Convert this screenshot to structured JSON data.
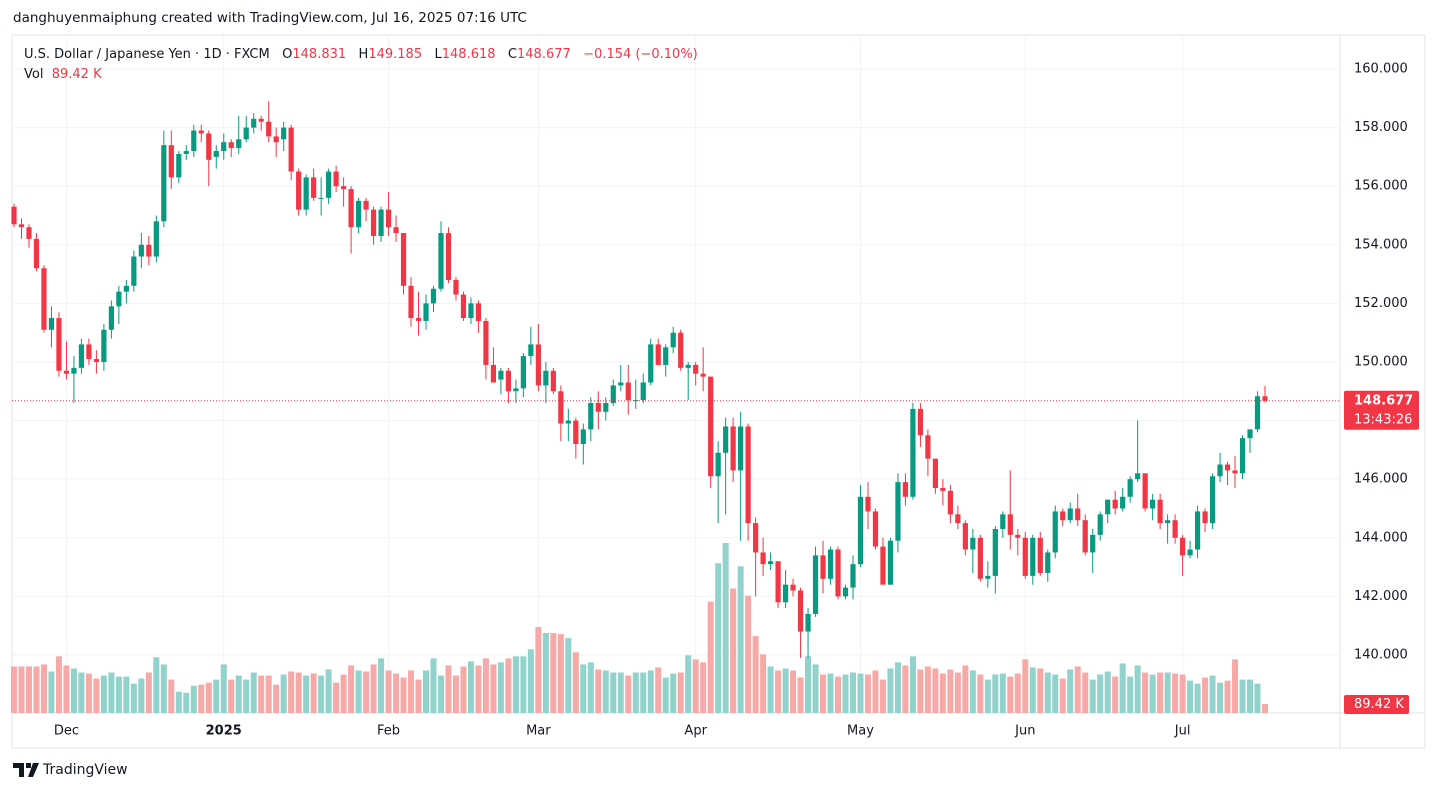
{
  "header": {
    "text": "danghuyenmaiphung created with TradingView.com, Jul 16, 2025 07:16 UTC"
  },
  "footer": {
    "logo_text": "TradingView"
  },
  "chart_data": {
    "type": "candlestick",
    "legend": {
      "symbol": "U.S. Dollar / Japanese Yen · 1D · FXCM",
      "open_label": "O",
      "high_label": "H",
      "low_label": "L",
      "close_label": "C",
      "change": "−0.154 (−0.10%)",
      "volume_label": "Vol"
    },
    "volume_last_label": "89.42 K",
    "countdown": "13:43:26",
    "up_color": "#089981",
    "down_color": "#f23645",
    "volume_up_color": "#92d2cc",
    "volume_down_color": "#f7a9a7",
    "grid": true,
    "ylim": [
      138.02,
      161.16
    ],
    "yticks": [
      {
        "value": 140,
        "label": "140.000"
      },
      {
        "value": 142,
        "label": "142.000"
      },
      {
        "value": 144,
        "label": "144.000"
      },
      {
        "value": 146,
        "label": "146.000"
      },
      {
        "value": 148,
        "label": "148.000"
      },
      {
        "value": 150,
        "label": "150.000"
      },
      {
        "value": 152,
        "label": "152.000"
      },
      {
        "value": 154,
        "label": "154.000"
      },
      {
        "value": 156,
        "label": "156.000"
      },
      {
        "value": 158,
        "label": "158.000"
      },
      {
        "value": 160,
        "label": "160.000"
      }
    ],
    "y2lim": [
      0,
      6700
    ],
    "categories": [
      null,
      null,
      null,
      null,
      null,
      null,
      null,
      "Dec",
      null,
      null,
      null,
      null,
      null,
      null,
      null,
      null,
      null,
      null,
      null,
      null,
      null,
      null,
      null,
      null,
      null,
      null,
      null,
      null,
      "2025",
      null,
      null,
      null,
      null,
      null,
      null,
      null,
      null,
      null,
      null,
      null,
      null,
      null,
      null,
      null,
      null,
      null,
      null,
      null,
      null,
      null,
      "Feb",
      null,
      null,
      null,
      null,
      null,
      null,
      null,
      null,
      null,
      null,
      null,
      null,
      null,
      null,
      null,
      null,
      null,
      null,
      null,
      "Mar",
      null,
      null,
      null,
      null,
      null,
      null,
      null,
      null,
      null,
      null,
      null,
      null,
      null,
      null,
      null,
      null,
      null,
      null,
      null,
      null,
      "Apr",
      null,
      null,
      null,
      null,
      null,
      null,
      null,
      null,
      null,
      null,
      null,
      null,
      null,
      null,
      null,
      null,
      null,
      null,
      null,
      null,
      null,
      "May",
      null,
      null,
      null,
      null,
      null,
      null,
      null,
      null,
      null,
      null,
      null,
      null,
      null,
      null,
      null,
      null,
      null,
      null,
      null,
      null,
      null,
      "Jun",
      null,
      null,
      null,
      null,
      null,
      null,
      null,
      null,
      null,
      null,
      null,
      null,
      null,
      null,
      null,
      null,
      null,
      null,
      null,
      null,
      "Jul",
      null,
      null,
      null,
      null,
      null,
      null,
      null,
      null,
      null,
      null,
      null
    ],
    "open": [
      155.3,
      154.7,
      154.6,
      154.2,
      153.2,
      151.1,
      151.5,
      149.7,
      149.6,
      149.8,
      150.6,
      150.1,
      150.0,
      151.1,
      151.9,
      152.4,
      152.6,
      153.6,
      154.0,
      153.6,
      154.8,
      157.4,
      156.3,
      157.1,
      157.2,
      157.9,
      157.8,
      157.0,
      157.2,
      157.5,
      157.3,
      157.6,
      158.0,
      158.3,
      158.2,
      157.7,
      157.6,
      158.0,
      156.5,
      155.2,
      156.3,
      155.6,
      155.6,
      156.5,
      156.0,
      155.9,
      154.6,
      155.5,
      155.2,
      154.3,
      155.2,
      154.6,
      154.4,
      152.6,
      151.5,
      151.4,
      152.0,
      152.5,
      154.4,
      152.8,
      152.3,
      151.5,
      152.0,
      151.4,
      149.9,
      149.4,
      149.7,
      149.0,
      149.1,
      150.2,
      150.6,
      149.2,
      149.7,
      149.0,
      147.9,
      148.0,
      147.2,
      147.7,
      148.6,
      148.3,
      148.6,
      149.2,
      149.3,
      148.7,
      148.7,
      149.3,
      150.6,
      149.9,
      150.5,
      151.0,
      149.8,
      149.9,
      149.6,
      149.5,
      146.1,
      146.9,
      147.8,
      146.3,
      147.8,
      144.5,
      143.5,
      143.1,
      143.2,
      141.8,
      142.4,
      142.2,
      140.8,
      141.4,
      143.4,
      142.6,
      143.6,
      142.0,
      142.3,
      143.1,
      145.4,
      144.9,
      143.7,
      142.4,
      143.9,
      145.9,
      145.4,
      148.4,
      147.5,
      146.7,
      145.7,
      145.6,
      144.8,
      144.5,
      143.6,
      144.0,
      142.6,
      142.7,
      144.3,
      144.8,
      144.1,
      144.0,
      142.7,
      144.0,
      142.8,
      143.5,
      144.9,
      144.6,
      145.0,
      144.6,
      143.5,
      144.1,
      144.8,
      145.3,
      145.0,
      145.4,
      146.0,
      146.2,
      145.0,
      145.3,
      144.5,
      144.6,
      144.0,
      143.4,
      143.6,
      144.9,
      144.5,
      146.1,
      146.5,
      146.3,
      146.2,
      147.4,
      147.7,
      148.831
    ],
    "high": [
      155.4,
      154.9,
      154.7,
      154.4,
      153.3,
      151.9,
      151.7,
      150.7,
      150.2,
      150.8,
      150.8,
      150.4,
      151.3,
      152.1,
      152.6,
      152.8,
      153.8,
      154.4,
      154.3,
      155.0,
      157.9,
      157.9,
      157.2,
      157.4,
      158.1,
      158.1,
      157.9,
      157.4,
      157.8,
      157.6,
      158.4,
      158.4,
      158.5,
      158.4,
      158.9,
      158.0,
      158.2,
      158.1,
      156.6,
      156.4,
      156.6,
      156.3,
      156.6,
      156.7,
      156.3,
      156.0,
      155.6,
      155.6,
      155.3,
      155.3,
      155.8,
      155.0,
      154.4,
      152.9,
      152.4,
      152.3,
      152.6,
      154.8,
      154.6,
      152.9,
      152.4,
      152.2,
      152.1,
      151.5,
      150.5,
      149.8,
      149.8,
      149.4,
      150.3,
      151.2,
      151.3,
      150.0,
      149.8,
      149.2,
      148.4,
      148.1,
      147.9,
      148.8,
      149.0,
      148.8,
      149.4,
      149.9,
      149.9,
      149.4,
      149.6,
      150.8,
      150.8,
      150.6,
      151.2,
      151.1,
      150.0,
      150.0,
      150.5,
      149.5,
      147.3,
      148.1,
      148.1,
      148.3,
      147.9,
      144.7,
      144.0,
      143.5,
      143.2,
      142.9,
      142.6,
      142.3,
      141.6,
      143.7,
      143.9,
      143.7,
      143.7,
      142.4,
      143.4,
      145.8,
      145.9,
      145.0,
      144.0,
      144.0,
      146.2,
      146.2,
      148.6,
      148.6,
      147.7,
      146.7,
      146.0,
      145.8,
      145.1,
      144.6,
      144.3,
      144.1,
      143.2,
      144.4,
      144.9,
      146.3,
      144.3,
      144.2,
      144.1,
      144.2,
      143.6,
      145.1,
      145.0,
      145.2,
      145.5,
      144.8,
      144.3,
      144.9,
      145.3,
      145.6,
      145.7,
      146.1,
      148.0,
      146.2,
      145.5,
      145.5,
      144.8,
      144.8,
      144.1,
      143.9,
      145.1,
      145.0,
      146.2,
      146.9,
      146.6,
      146.8,
      147.5,
      147.7,
      149.0,
      149.185
    ],
    "low": [
      154.6,
      154.2,
      153.9,
      153.1,
      151.0,
      150.5,
      149.5,
      149.4,
      148.6,
      149.6,
      149.9,
      149.6,
      149.7,
      150.8,
      151.3,
      152.0,
      152.4,
      153.2,
      153.3,
      153.4,
      154.6,
      155.9,
      156.1,
      156.9,
      157.0,
      157.5,
      156.0,
      156.6,
      156.9,
      157.0,
      157.1,
      157.5,
      157.8,
      157.9,
      157.5,
      157.0,
      157.2,
      156.2,
      155.0,
      155.0,
      155.5,
      155.0,
      155.4,
      155.8,
      155.3,
      153.7,
      154.4,
      154.8,
      154.0,
      154.1,
      154.3,
      154.1,
      152.3,
      151.2,
      150.9,
      151.1,
      151.7,
      152.4,
      152.7,
      152.1,
      151.4,
      151.3,
      151.0,
      149.4,
      149.3,
      148.9,
      148.6,
      148.6,
      148.8,
      149.9,
      149.0,
      148.6,
      148.9,
      147.3,
      147.3,
      146.7,
      146.5,
      147.3,
      147.7,
      148.0,
      148.5,
      149.0,
      148.2,
      148.4,
      148.6,
      149.2,
      149.9,
      149.5,
      150.3,
      149.7,
      148.7,
      149.2,
      149.0,
      145.7,
      144.5,
      144.8,
      145.9,
      143.9,
      143.9,
      142.0,
      142.7,
      142.9,
      141.6,
      141.6,
      142.0,
      139.9,
      139.9,
      141.3,
      142.1,
      142.4,
      141.9,
      141.9,
      141.9,
      143.0,
      144.3,
      143.6,
      142.4,
      142.4,
      143.5,
      145.1,
      145.3,
      147.1,
      146.1,
      145.5,
      145.1,
      144.5,
      144.3,
      143.4,
      142.8,
      142.5,
      142.3,
      142.1,
      144.0,
      143.6,
      143.4,
      142.6,
      142.4,
      142.7,
      142.5,
      143.3,
      144.4,
      144.5,
      144.4,
      143.4,
      142.8,
      143.9,
      144.5,
      144.8,
      144.9,
      145.2,
      145.9,
      144.9,
      144.6,
      144.3,
      143.8,
      143.8,
      142.7,
      143.3,
      143.3,
      144.2,
      144.3,
      145.9,
      145.8,
      145.7,
      146.0,
      146.9,
      147.6,
      148.618
    ],
    "close": [
      154.7,
      154.6,
      154.2,
      153.2,
      151.1,
      151.5,
      149.7,
      149.6,
      149.8,
      150.6,
      150.1,
      150.0,
      151.1,
      151.9,
      152.4,
      152.6,
      153.6,
      154.0,
      153.6,
      154.8,
      157.4,
      156.3,
      157.1,
      157.2,
      157.9,
      157.8,
      156.9,
      157.2,
      157.5,
      157.3,
      157.6,
      158.0,
      158.3,
      158.2,
      157.7,
      157.5,
      158.0,
      156.5,
      155.2,
      156.3,
      155.6,
      155.6,
      156.5,
      156.0,
      155.9,
      154.6,
      155.5,
      155.2,
      154.3,
      155.2,
      154.6,
      154.4,
      152.6,
      151.5,
      151.4,
      152.0,
      152.5,
      154.4,
      152.8,
      152.3,
      151.5,
      152.0,
      151.4,
      149.9,
      149.3,
      149.7,
      149.0,
      149.1,
      150.2,
      150.6,
      149.2,
      149.7,
      149.0,
      147.9,
      148.0,
      147.2,
      147.7,
      148.6,
      148.3,
      148.6,
      149.2,
      149.3,
      148.7,
      148.7,
      149.3,
      150.6,
      149.9,
      150.5,
      151.0,
      149.8,
      149.9,
      149.6,
      149.5,
      146.1,
      146.9,
      147.8,
      146.3,
      147.8,
      144.5,
      143.5,
      143.1,
      143.2,
      141.8,
      142.4,
      142.2,
      140.8,
      141.4,
      143.4,
      142.6,
      143.6,
      142.0,
      142.3,
      143.1,
      145.4,
      144.9,
      143.7,
      142.4,
      143.9,
      145.9,
      145.4,
      148.4,
      147.5,
      146.7,
      145.7,
      145.6,
      144.8,
      144.5,
      143.6,
      144.0,
      142.6,
      142.7,
      144.3,
      144.8,
      144.1,
      144.0,
      142.7,
      144.0,
      142.8,
      143.5,
      144.9,
      144.6,
      145.0,
      144.6,
      143.5,
      144.1,
      144.8,
      145.3,
      145.0,
      145.4,
      146.0,
      146.2,
      145.0,
      145.3,
      144.5,
      144.6,
      144.0,
      143.4,
      143.6,
      144.9,
      144.5,
      146.1,
      146.5,
      146.3,
      146.2,
      147.4,
      147.7,
      148.831,
      148.677
    ],
    "volume": [
      460,
      460,
      460,
      460,
      480,
      410,
      560,
      470,
      440,
      400,
      390,
      340,
      370,
      400,
      360,
      360,
      290,
      340,
      400,
      550,
      480,
      330,
      210,
      200,
      270,
      280,
      300,
      330,
      480,
      330,
      370,
      330,
      400,
      370,
      370,
      280,
      380,
      410,
      400,
      370,
      390,
      370,
      430,
      300,
      380,
      470,
      420,
      410,
      480,
      540,
      420,
      390,
      350,
      420,
      330,
      420,
      540,
      370,
      470,
      370,
      460,
      510,
      470,
      540,
      480,
      500,
      540,
      560,
      560,
      630,
      850,
      790,
      790,
      780,
      740,
      600,
      480,
      500,
      430,
      420,
      400,
      400,
      370,
      400,
      400,
      420,
      450,
      350,
      390,
      400,
      570,
      530,
      500,
      1100,
      1480,
      1680,
      1230,
      1450,
      1160,
      760,
      580,
      460,
      420,
      440,
      420,
      350,
      560,
      480,
      380,
      390,
      360,
      380,
      400,
      390,
      380,
      420,
      330,
      440,
      500,
      470,
      560,
      430,
      460,
      440,
      390,
      430,
      400,
      470,
      420,
      380,
      330,
      380,
      390,
      360,
      390,
      530,
      450,
      440,
      400,
      380,
      340,
      430,
      460,
      400,
      330,
      380,
      410,
      360,
      490,
      360,
      470,
      400,
      380,
      400,
      400,
      390,
      380,
      320,
      290,
      350,
      370,
      300,
      320,
      530,
      330,
      330,
      290,
      89.42
    ]
  }
}
